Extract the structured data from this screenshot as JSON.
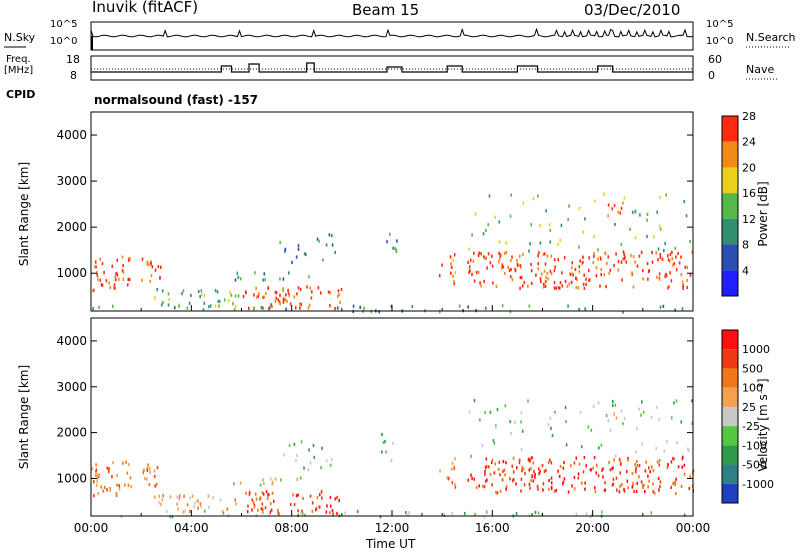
{
  "header": {
    "station": "Inuvik (fitACF)",
    "beam": "Beam 15",
    "date": "03/Dec/2010"
  },
  "noise_panel": {
    "left_label": "N.Sky",
    "right_label": "N.Search",
    "ytick_top": "10^5",
    "ytick_bottom": "10^0"
  },
  "freq_panel": {
    "left_label_1": "Freq.",
    "left_label_2": "[MHz]",
    "right_label": "Nave",
    "left_ticks": [
      "18",
      "8"
    ],
    "right_ticks": [
      "60",
      "0"
    ]
  },
  "cpid_label": "CPID",
  "mode_text": "normalsound (fast) -157",
  "chart_data": [
    {
      "type": "heatmap",
      "name": "power",
      "ylabel": "Slant Range [km]",
      "ylim": [
        180,
        4500
      ],
      "yticks": [
        "1000",
        "2000",
        "3000",
        "4000"
      ],
      "xlim": [
        0,
        24
      ],
      "colorbar_label": "Power [dB]",
      "colorbar_ticks": [
        "4",
        "8",
        "12",
        "16",
        "20",
        "24",
        "28"
      ],
      "colors": [
        "#2020ff",
        "#2a4fb0",
        "#2f8f6f",
        "#55b848",
        "#e8d01c",
        "#f08a18",
        "#ff2a10"
      ]
    },
    {
      "type": "heatmap",
      "name": "velocity",
      "ylabel": "Slant Range [km]",
      "ylim": [
        180,
        4500
      ],
      "yticks": [
        "1000",
        "2000",
        "3000",
        "4000"
      ],
      "xlim": [
        0,
        24
      ],
      "colorbar_label": "Velocity [m s⁻¹]",
      "colorbar_ticks": [
        "1000",
        "500",
        "100",
        "25",
        "-25",
        "-100",
        "-500",
        "-1000"
      ],
      "colors": [
        "#2040c0",
        "#2f7f86",
        "#2e9a4a",
        "#55c842",
        "#c8c8c8",
        "#f5a050",
        "#f07818",
        "#ee3a12",
        "#ff1010"
      ]
    }
  ],
  "xaxis": {
    "label": "Time UT",
    "ticks": [
      "00:00",
      "04:00",
      "08:00",
      "12:00",
      "16:00",
      "20:00",
      "00:00"
    ]
  }
}
